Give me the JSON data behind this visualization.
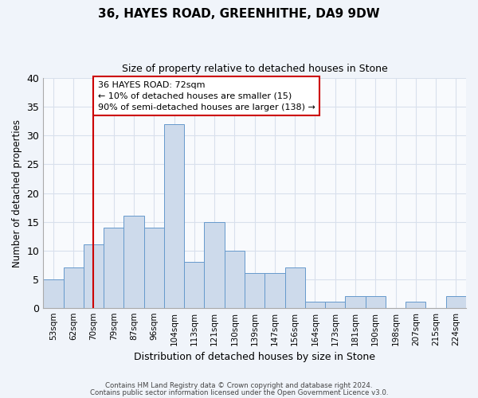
{
  "title1": "36, HAYES ROAD, GREENHITHE, DA9 9DW",
  "title2": "Size of property relative to detached houses in Stone",
  "xlabel": "Distribution of detached houses by size in Stone",
  "ylabel": "Number of detached properties",
  "bar_color": "#cddaeb",
  "bar_edge_color": "#6699cc",
  "categories": [
    "53sqm",
    "62sqm",
    "70sqm",
    "79sqm",
    "87sqm",
    "96sqm",
    "104sqm",
    "113sqm",
    "121sqm",
    "130sqm",
    "139sqm",
    "147sqm",
    "156sqm",
    "164sqm",
    "173sqm",
    "181sqm",
    "190sqm",
    "198sqm",
    "207sqm",
    "215sqm",
    "224sqm"
  ],
  "values": [
    5,
    7,
    11,
    14,
    16,
    14,
    32,
    8,
    15,
    10,
    6,
    6,
    7,
    1,
    1,
    2,
    2,
    0,
    1,
    0,
    2
  ],
  "vline_x_index": 2,
  "vline_color": "#cc0000",
  "annotation_line1": "36 HAYES ROAD: 72sqm",
  "annotation_line2": "← 10% of detached houses are smaller (15)",
  "annotation_line3": "90% of semi-detached houses are larger (138) →",
  "annotation_box_color": "#ffffff",
  "annotation_box_edgecolor": "#cc0000",
  "footer1": "Contains HM Land Registry data © Crown copyright and database right 2024.",
  "footer2": "Contains public sector information licensed under the Open Government Licence v3.0.",
  "ylim": [
    0,
    40
  ],
  "yticks": [
    0,
    5,
    10,
    15,
    20,
    25,
    30,
    35,
    40
  ],
  "bg_color": "#f0f4fa",
  "plot_bg_color": "#f8fafd",
  "grid_color": "#d8e0ec"
}
